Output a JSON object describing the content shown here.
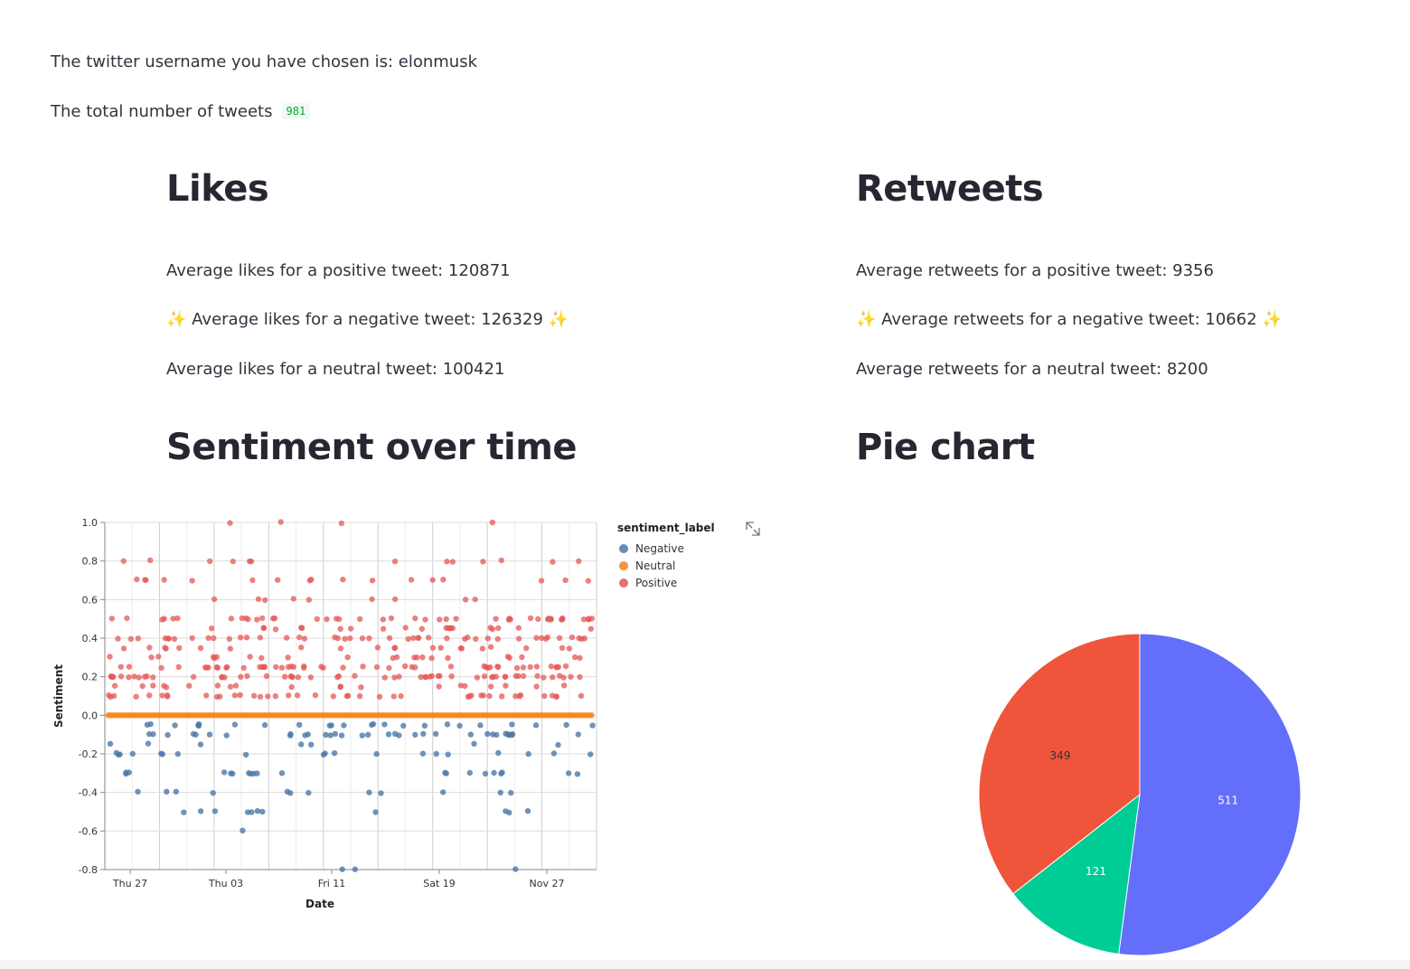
{
  "intro": {
    "username_text": "The twitter username you have chosen is: elonmusk",
    "total_label": "The total number of tweets",
    "total_value": "981"
  },
  "likes": {
    "heading": "Likes",
    "positive": "Average likes for a positive tweet: 120871",
    "negative": "Average likes for a negative tweet: 126329",
    "neutral": "Average likes for a neutral tweet: 100421"
  },
  "retweets": {
    "heading": "Retweets",
    "positive": "Average retweets for a positive tweet: 9356",
    "negative": "Average retweets for a negative tweet: 10662",
    "neutral": "Average retweets for a neutral tweet: 8200"
  },
  "sparkle": "✨",
  "sentiment_heading": "Sentiment over time",
  "pie_heading": "Pie chart",
  "chart_data": [
    {
      "type": "scatter",
      "xlabel": "Date",
      "ylabel": "Sentiment",
      "x_ticks": [
        "Thu 27",
        "Thu 03",
        "Fri 11",
        "Sat 19",
        "Nov 27"
      ],
      "ylim": [
        -0.8,
        1.0
      ],
      "y_ticks": [
        "1.0",
        "0.8",
        "0.6",
        "0.4",
        "0.2",
        "0.0",
        "-0.2",
        "-0.4",
        "-0.6",
        "-0.8"
      ],
      "grid": true,
      "legend_title": "sentiment_label",
      "legend_position": "right",
      "series": [
        {
          "name": "Negative",
          "color": "#4c78a8"
        },
        {
          "name": "Neutral",
          "color": "#f58518"
        },
        {
          "name": "Positive",
          "color": "#e45756"
        }
      ]
    },
    {
      "type": "pie",
      "slices": [
        {
          "value": 511,
          "color": "#636efa"
        },
        {
          "value": 121,
          "color": "#00cc96"
        },
        {
          "value": 349,
          "color": "#ef553b"
        }
      ]
    }
  ]
}
